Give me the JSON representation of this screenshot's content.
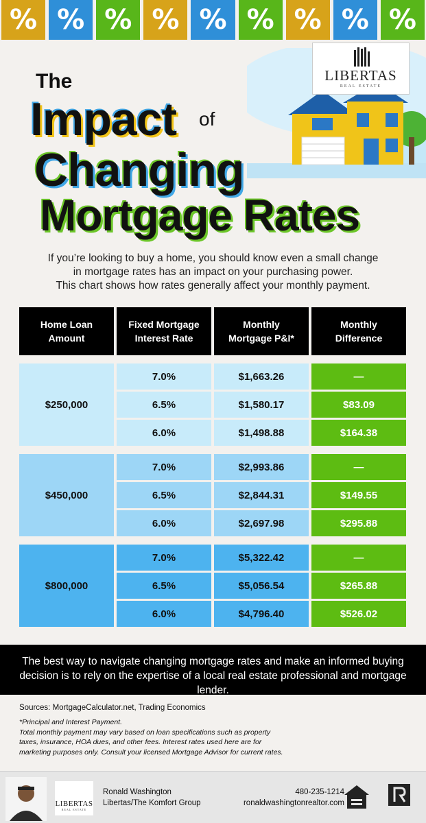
{
  "tiles": [
    {
      "glyph": "%",
      "bg": "#d7a31a"
    },
    {
      "glyph": "%",
      "bg": "#2f8fd8"
    },
    {
      "glyph": "%",
      "bg": "#58b61a"
    },
    {
      "glyph": "%",
      "bg": "#d7a31a"
    },
    {
      "glyph": "%",
      "bg": "#2f8fd8"
    },
    {
      "glyph": "%",
      "bg": "#58b61a"
    },
    {
      "glyph": "%",
      "bg": "#d7a31a"
    },
    {
      "glyph": "%",
      "bg": "#2f8fd8"
    },
    {
      "glyph": "%",
      "bg": "#58b61a"
    }
  ],
  "logo": {
    "name": "LIBERTAS",
    "sub": "REAL ESTATE"
  },
  "headline": {
    "the": "The",
    "impact": "Impact",
    "of": "of",
    "changing": "Changing",
    "mortgage_rates": "Mortgage Rates"
  },
  "intro": {
    "line1": "If you’re looking to buy a home, you should know even a small change",
    "line2": "in mortgage rates has an impact on your purchasing power.",
    "line3": "This chart shows how rates generally affect your monthly payment."
  },
  "table": {
    "headers": {
      "amount": [
        "Home Loan",
        "Amount"
      ],
      "rate": [
        "Fixed Mortgage",
        "Interest Rate"
      ],
      "pi": [
        "Monthly",
        "Mortgage P&I*"
      ],
      "diff": [
        "Monthly",
        "Difference"
      ]
    },
    "groups": [
      {
        "amount": "$250,000",
        "bg": "#c8ebfa",
        "rows": [
          {
            "rate": "7.0%",
            "pi": "$1,663.26",
            "diff": "—"
          },
          {
            "rate": "6.5%",
            "pi": "$1,580.17",
            "diff": "$83.09"
          },
          {
            "rate": "6.0%",
            "pi": "$1,498.88",
            "diff": "$164.38"
          }
        ]
      },
      {
        "amount": "$450,000",
        "bg": "#9dd6f6",
        "rows": [
          {
            "rate": "7.0%",
            "pi": "$2,993.86",
            "diff": "—"
          },
          {
            "rate": "6.5%",
            "pi": "$2,844.31",
            "diff": "$149.55"
          },
          {
            "rate": "6.0%",
            "pi": "$2,697.98",
            "diff": "$295.88"
          }
        ]
      },
      {
        "amount": "$800,000",
        "bg": "#4db3ef",
        "rows": [
          {
            "rate": "7.0%",
            "pi": "$5,322.42",
            "diff": "—"
          },
          {
            "rate": "6.5%",
            "pi": "$5,056.54",
            "diff": "$265.88"
          },
          {
            "rate": "6.0%",
            "pi": "$4,796.40",
            "diff": "$526.02"
          }
        ]
      }
    ]
  },
  "banner": {
    "line1": "The best way to navigate changing mortgage rates and make an informed buying",
    "line2": "decision is to rely on the expertise of a local real estate professional and mortgage lender."
  },
  "sources": "Sources: MortgageCalculator.net, Trading Economics",
  "notes": {
    "line1": "*Principal and Interest Payment.",
    "line2": "Total monthly payment may vary based on loan specifications such as property",
    "line3": "taxes, insurance, HOA dues, and other fees. Interest rates used here are for",
    "line4": "marketing purposes only. Consult your licensed Mortgage Advisor for current rates."
  },
  "agent": {
    "name": "Ronald Washington",
    "company": "Libertas/The Komfort Group",
    "phone": "480-235-1214",
    "website": "ronaldwashingtonrealtor.com"
  },
  "colors": {
    "yellow": "#f2c418",
    "blue": "#41a7e6",
    "green": "#6cc629",
    "diff_green": "#5dbc12"
  }
}
